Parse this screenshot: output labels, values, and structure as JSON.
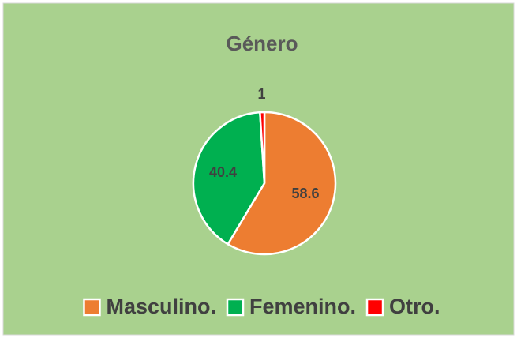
{
  "chart_data": {
    "type": "pie",
    "title": "Género",
    "categories": [
      "Masculino.",
      "Femenino.",
      "Otro."
    ],
    "values": [
      58.6,
      40.4,
      1
    ],
    "colors": [
      "#ed7d31",
      "#00b050",
      "#ff0000"
    ],
    "legend": "bottom"
  }
}
